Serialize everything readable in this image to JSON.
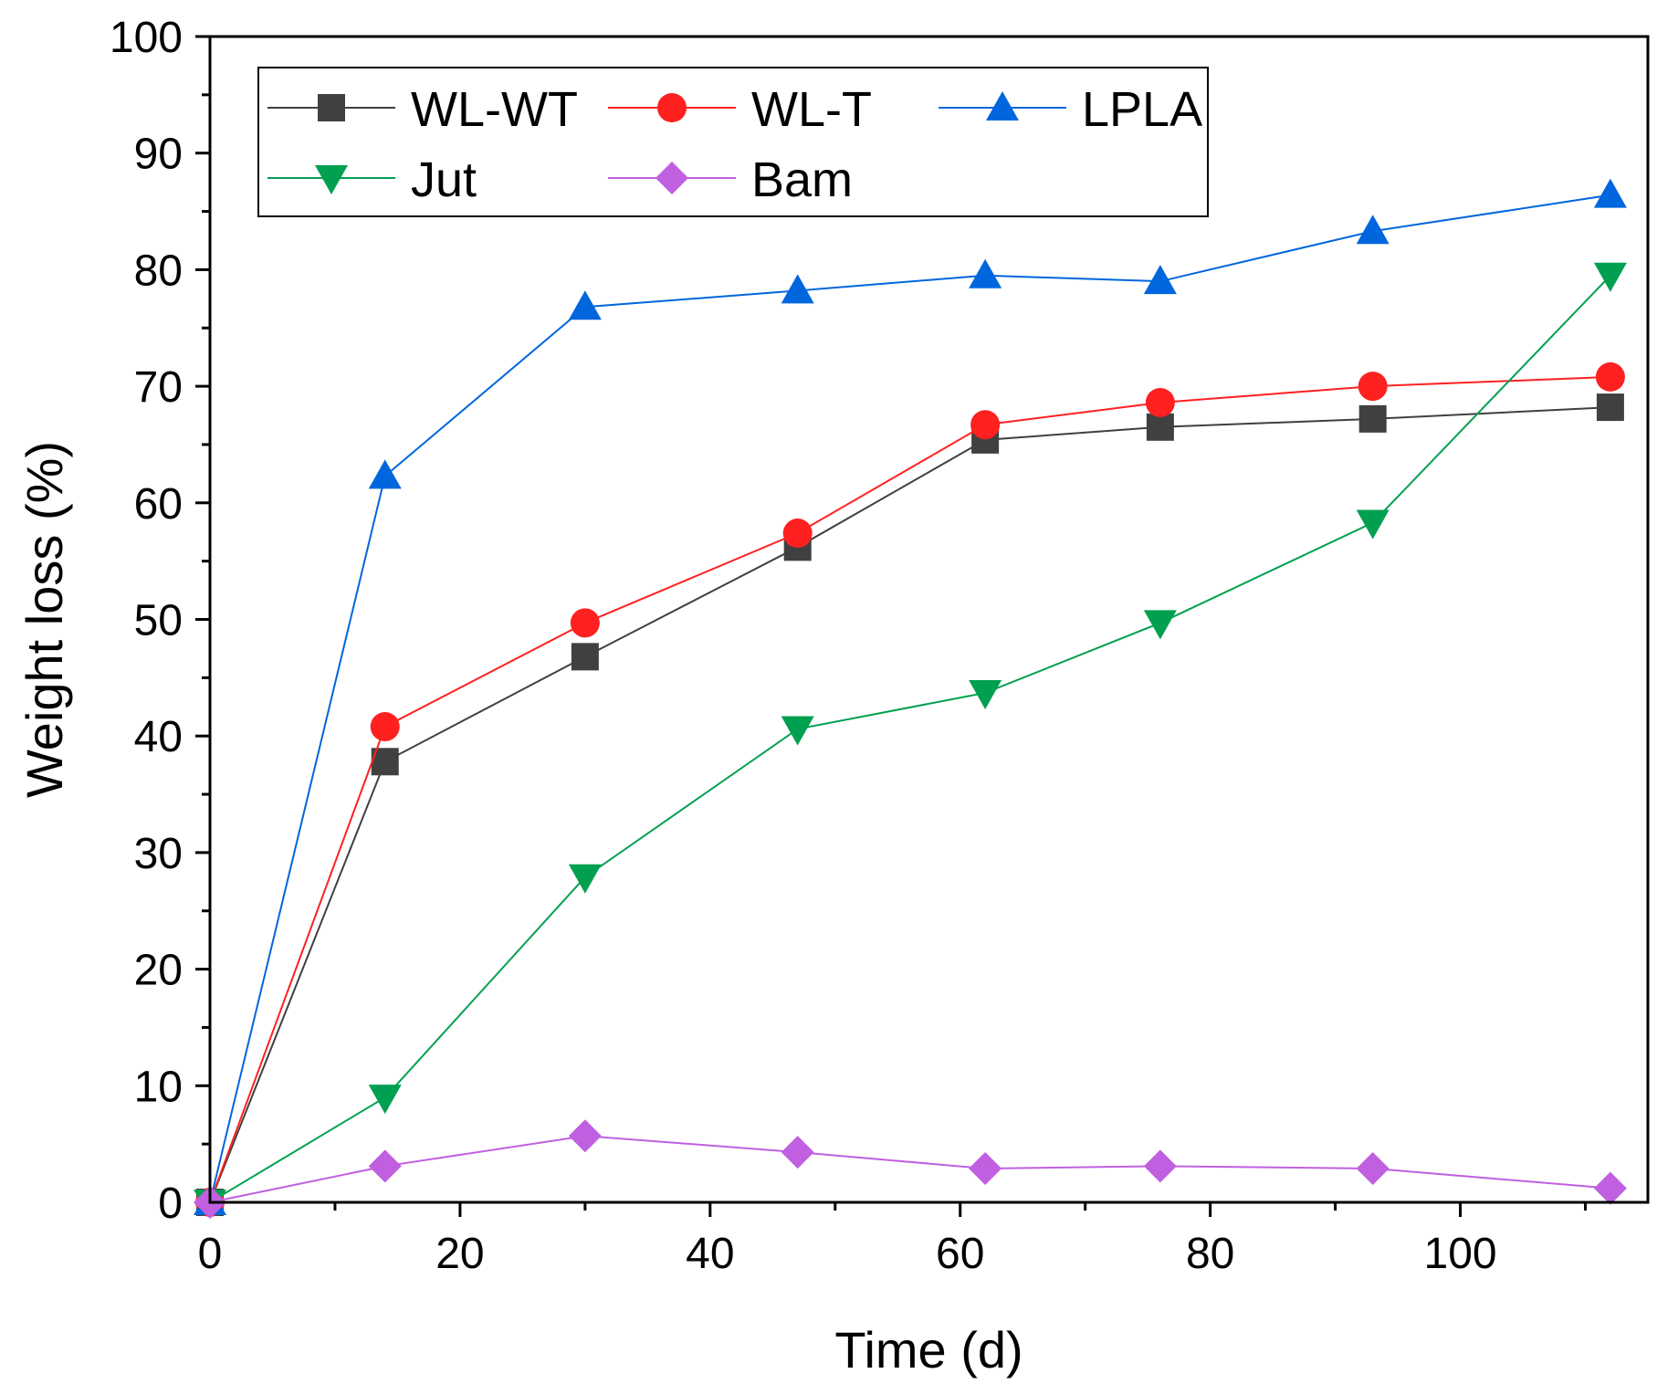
{
  "chart_data": {
    "type": "line",
    "title": "",
    "xlabel": "Time (d)",
    "ylabel": "Weight loss (%)",
    "xlim": [
      0,
      115
    ],
    "ylim": [
      0,
      100
    ],
    "x_ticks": [
      0,
      20,
      40,
      60,
      80,
      100
    ],
    "x_tick_labels": [
      "0",
      "20",
      "40",
      "60",
      "80",
      "100"
    ],
    "y_ticks": [
      0,
      10,
      20,
      30,
      40,
      50,
      60,
      70,
      80,
      90,
      100
    ],
    "y_tick_labels": [
      "0",
      "10",
      "20",
      "30",
      "40",
      "50",
      "60",
      "70",
      "80",
      "90",
      "100"
    ],
    "legend_position": "top-left",
    "x": [
      0,
      14,
      30,
      47,
      62,
      76,
      93,
      112
    ],
    "series": [
      {
        "name": "WL-WT",
        "color": "#404040",
        "marker": "square",
        "values": [
          0,
          37.8,
          46.8,
          56.2,
          65.4,
          66.5,
          67.2,
          68.2
        ]
      },
      {
        "name": "WL-T",
        "color": "#ff2020",
        "marker": "circle",
        "values": [
          0,
          40.8,
          49.7,
          57.4,
          66.7,
          68.6,
          70.0,
          70.8
        ]
      },
      {
        "name": "LPLA",
        "color": "#0066dd",
        "marker": "triangle-up",
        "values": [
          0,
          62.3,
          76.8,
          78.2,
          79.5,
          79.0,
          83.3,
          86.4
        ]
      },
      {
        "name": "Jut",
        "color": "#00a050",
        "marker": "triangle-down",
        "values": [
          0,
          9.0,
          27.9,
          40.6,
          43.7,
          49.7,
          58.3,
          79.5
        ]
      },
      {
        "name": "Bam",
        "color": "#c060e0",
        "marker": "diamond",
        "values": [
          0,
          3.1,
          5.7,
          4.3,
          2.9,
          3.1,
          2.9,
          1.2
        ]
      }
    ]
  }
}
